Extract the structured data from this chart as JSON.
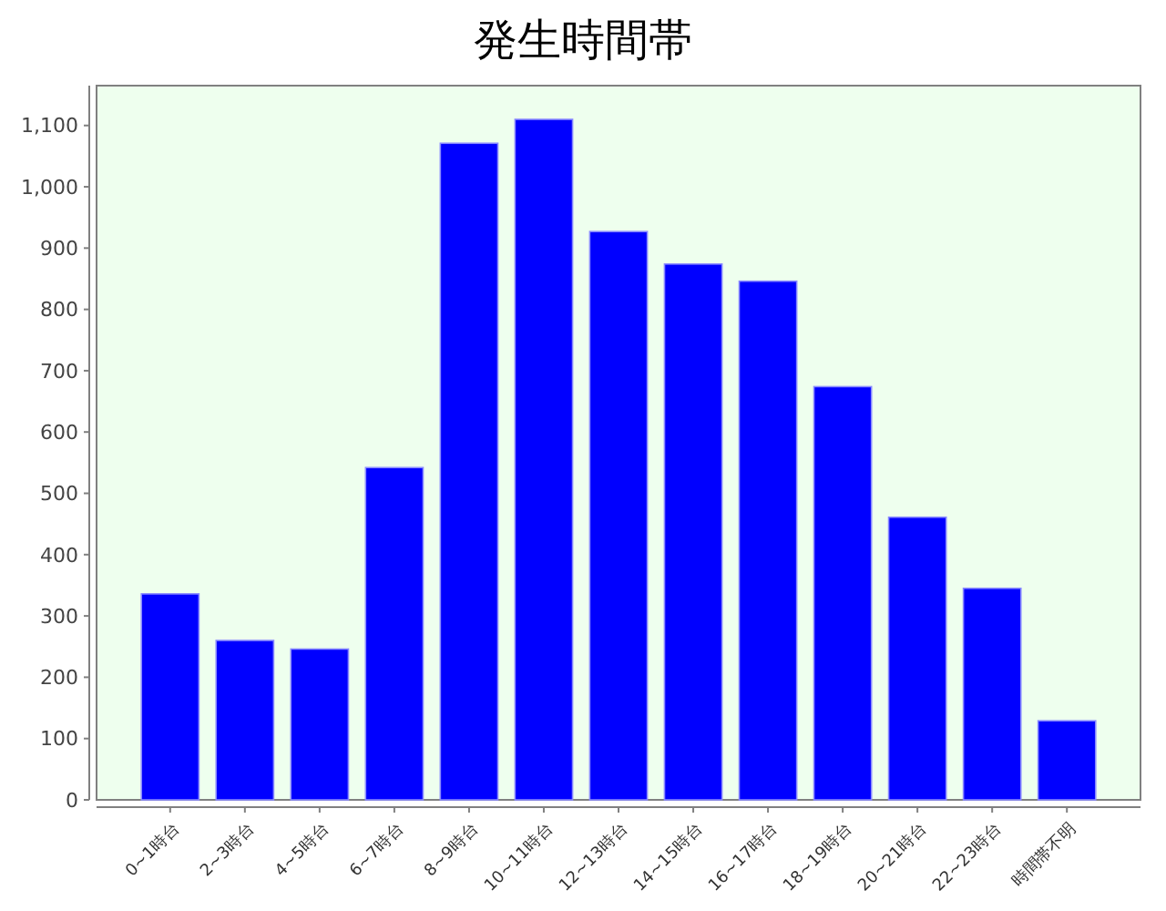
{
  "chart_data": {
    "type": "bar",
    "title": "発生時間帯",
    "categories": [
      "0~1時台",
      "2~3時台",
      "4~5時台",
      "6~7時台",
      "8~9時台",
      "10~11時台",
      "12~13時台",
      "14~15時台",
      "16~17時台",
      "18~19時台",
      "20~21時台",
      "22~23時台",
      "時間帯不明"
    ],
    "values": [
      336,
      260,
      246,
      542,
      1071,
      1110,
      927,
      874,
      846,
      674,
      461,
      345,
      129
    ],
    "color": "#0000ff",
    "ylim": [
      0,
      1165
    ],
    "yticks": [
      0,
      100,
      200,
      300,
      400,
      500,
      600,
      700,
      800,
      900,
      {
        "value": 1000,
        "label": "1,000"
      },
      {
        "value": 1100,
        "label": "1,100"
      }
    ],
    "grid": false
  }
}
